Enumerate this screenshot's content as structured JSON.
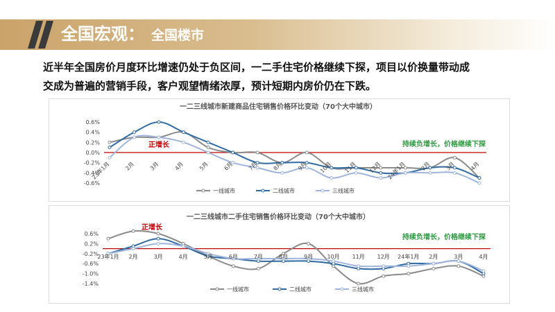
{
  "header": {
    "title": "全国宏观：",
    "subtitle": "全国楼市"
  },
  "summary": {
    "line1": "近半年全国房价月度环比增速仍处于负区间，一二手住宅价格继续下探，项目以价换量带动成",
    "line2": "交成为普遍的营销手段，客户观望情绪浓厚，预计短期内房价仍在下跌。"
  },
  "colors": {
    "series1": "#8a8a8a",
    "series2": "#2f6aa3",
    "series3": "#9fb4dd",
    "zero_line": "#c00000",
    "up_label": "#c00000",
    "down_label": "#2e9a3e"
  },
  "chart_data": [
    {
      "type": "line",
      "title": "一二三线城市新建商品住宅销售价格环比变动（70个大中城市）",
      "categories": [
        "23年1月",
        "2月",
        "3月",
        "4月",
        "5月",
        "6月",
        "7月",
        "8月",
        "9月",
        "10月",
        "11月",
        "12月",
        "24年1月",
        "2月",
        "3月",
        "4月"
      ],
      "ylim": [
        -0.6,
        0.6
      ],
      "yticks": [
        "0.6%",
        "0.4%",
        "0.2%",
        "0.0%",
        "-0.2%",
        "-0.4%",
        "-0.6%"
      ],
      "series": [
        {
          "name": "一线城市",
          "values": [
            0.2,
            0.3,
            0.3,
            0.4,
            0.1,
            0.0,
            0.0,
            -0.2,
            0.0,
            -0.3,
            -0.3,
            -0.3,
            -0.3,
            -0.3,
            -0.1,
            -0.5
          ]
        },
        {
          "name": "二线城市",
          "values": [
            0.1,
            0.4,
            0.6,
            0.4,
            0.2,
            0.0,
            -0.2,
            -0.2,
            -0.2,
            -0.3,
            -0.3,
            -0.4,
            -0.4,
            -0.3,
            -0.3,
            -0.5
          ]
        },
        {
          "name": "三线城市",
          "values": [
            -0.1,
            0.3,
            0.3,
            0.2,
            0.0,
            -0.2,
            -0.3,
            -0.4,
            -0.3,
            -0.5,
            -0.4,
            -0.5,
            -0.4,
            -0.4,
            -0.4,
            -0.6
          ]
        }
      ],
      "annotations": {
        "up": "正增长",
        "down": "持续负增长，价格继续下探"
      },
      "legend": "bottom",
      "grid": false
    },
    {
      "type": "line",
      "title": "一二三线城市二手住宅销售价格环比变动（70个大中城市）",
      "categories": [
        "23年1月",
        "2月",
        "3月",
        "4月",
        "5月",
        "6月",
        "7月",
        "8月",
        "9月",
        "10月",
        "11月",
        "12月",
        "24年1月",
        "2月",
        "3月",
        "4月"
      ],
      "ylim": [
        -1.4,
        0.6
      ],
      "yticks": [
        "0.6%",
        "0.2%",
        "-0.2%",
        "-0.6%",
        "-1.0%",
        "-1.4%"
      ],
      "series": [
        {
          "name": "一线城市",
          "values": [
            0.4,
            0.7,
            0.6,
            0.2,
            -0.3,
            -0.7,
            -0.8,
            -0.2,
            0.2,
            -0.7,
            -1.4,
            -1.1,
            -1.0,
            -0.8,
            -0.7,
            -1.1
          ]
        },
        {
          "name": "二线城市",
          "values": [
            -0.2,
            0.1,
            0.4,
            0.1,
            -0.3,
            -0.4,
            -0.5,
            -0.5,
            -0.5,
            -0.6,
            -0.8,
            -0.8,
            -0.6,
            -0.6,
            -0.5,
            -1.0
          ]
        },
        {
          "name": "三线城市",
          "values": [
            -0.2,
            0.0,
            0.2,
            0.1,
            -0.2,
            -0.4,
            -0.4,
            -0.4,
            -0.4,
            -0.5,
            -0.7,
            -0.7,
            -0.7,
            -0.6,
            -0.5,
            -0.9
          ]
        }
      ],
      "annotations": {
        "up": "正增长",
        "down": "持续负增长，价格继续下探"
      },
      "legend": "bottom",
      "grid": false
    }
  ]
}
